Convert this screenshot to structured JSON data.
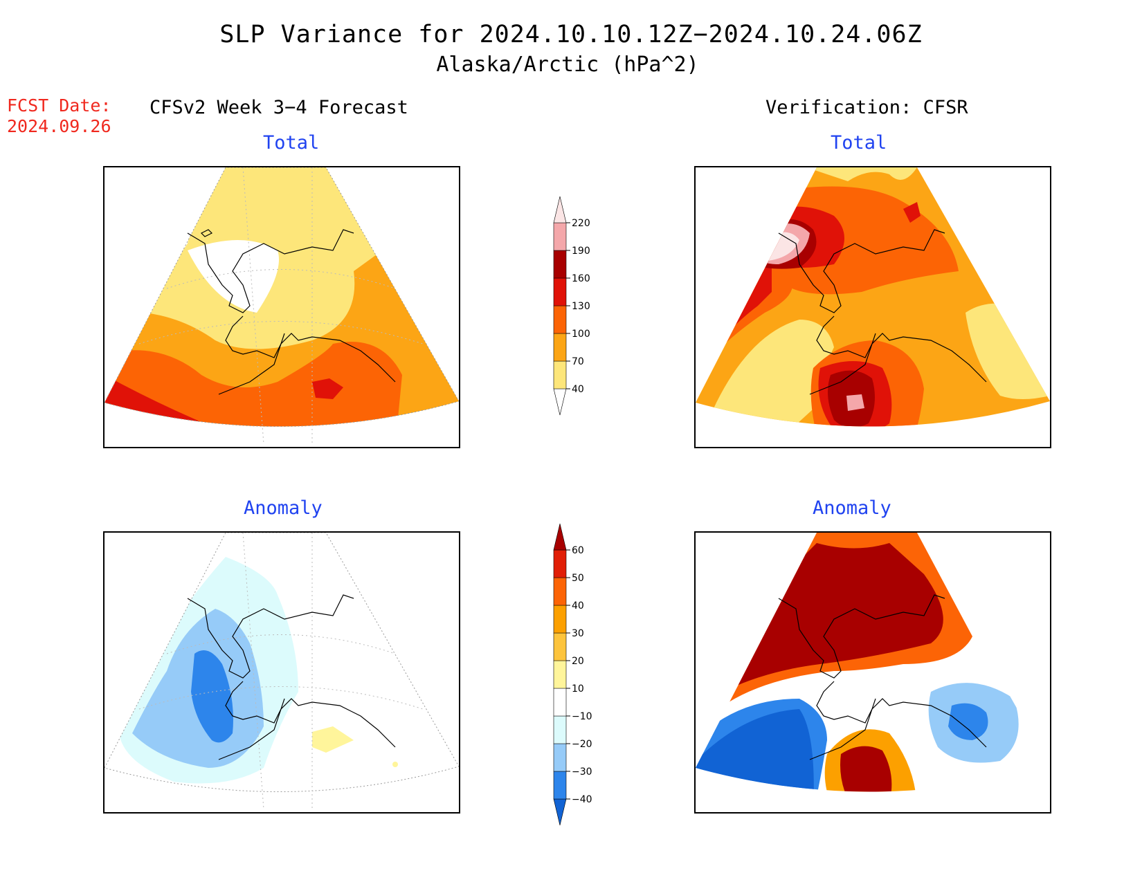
{
  "title": "SLP Variance for 2024.10.10.12Z−2024.10.24.06Z",
  "subtitle": "Alaska/Arctic (hPa^2)",
  "fcst_date": {
    "label": "FCST Date:",
    "value": "2024.09.26"
  },
  "left_header": "CFSv2 Week 3−4 Forecast",
  "right_header": "Verification: CFSR",
  "panels": {
    "fc_total": {
      "title": "Total"
    },
    "ver_total": {
      "title": "Total"
    },
    "fc_anom": {
      "title": "Anomaly"
    },
    "ver_anom": {
      "title": "Anomaly"
    }
  },
  "total_colorbar": {
    "levels": [
      "40",
      "70",
      "100",
      "130",
      "160",
      "190",
      "220"
    ],
    "colors": [
      "#ffffff",
      "#fde67a",
      "#fca515",
      "#fc6405",
      "#e01208",
      "#a80000",
      "#f4a7aa",
      "#fbe5e5"
    ]
  },
  "anomaly_colorbar": {
    "levels": [
      "−40",
      "−30",
      "−20",
      "−10",
      "10",
      "20",
      "30",
      "40",
      "50",
      "60"
    ],
    "colors": [
      "#1163d4",
      "#2d85eb",
      "#96cbf8",
      "#dcfbfc",
      "#ffffff",
      "#fff59b",
      "#fdc43c",
      "#fca000",
      "#fc6406",
      "#e11e06",
      "#a80000"
    ]
  }
}
